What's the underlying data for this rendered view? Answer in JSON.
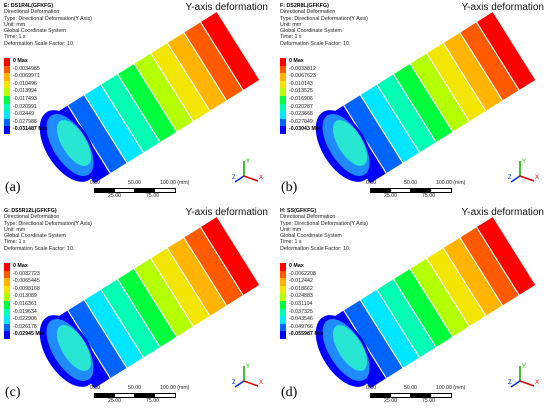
{
  "figure": {
    "panels": [
      {
        "label": "(a)",
        "title": "E: DS1R4L(GFKFG)",
        "lines": [
          "Directional Deformation",
          "Type: Directional Deformation(Y Axis)",
          "Unit: mm",
          "Global Coordinate System",
          "Time: 1 s",
          "Deformation Scale Factor: 10."
        ],
        "axis_label": "Y-axis deformation",
        "legend": [
          "0 Max",
          "-0.0034985",
          "-0.0069971",
          "-0.010496",
          "-0.013994",
          "-0.017493",
          "-0.020991",
          "-0.02449",
          "-0.027988",
          "-0.031487 Min"
        ]
      },
      {
        "label": "(b)",
        "title": "F: DS2R8L(GFKFG)",
        "lines": [
          "Directional Deformation",
          "Type: Directional Deformation(Y Axis)",
          "Unit: mm",
          "Global Coordinate System",
          "Time: 1 s",
          "Deformation Scale Factor: 10."
        ],
        "axis_label": "Y-axis deformation",
        "legend": [
          "0 Max",
          "-0.0033812",
          "-0.0067623",
          "-0.010143",
          "-0.013525",
          "-0.016906",
          "-0.020287",
          "-0.023668",
          "-0.027049",
          "-0.03043 Min"
        ]
      },
      {
        "label": "(c)",
        "title": "G: DS5R12L(GFKFG)",
        "lines": [
          "Directional Deformation",
          "Type: Directional Deformation(Y Axis)",
          "Unit: mm",
          "Global Coordinate System",
          "Time: 1 s",
          "Deformation Scale Factor: 10."
        ],
        "axis_label": "Y-axis deformation",
        "legend": [
          "0 Max",
          "-0.0032723",
          "-0.0065445",
          "-0.0098168",
          "-0.013089",
          "-0.016361",
          "-0.019634",
          "-0.022906",
          "-0.026178",
          "-0.02945 Min"
        ]
      },
      {
        "label": "(d)",
        "title": "H: SS(GFKFG)",
        "lines": [
          "Directional Deformation",
          "Type: Directional Deformation(Y Axis)",
          "Unit: mm",
          "Global Coordinate System",
          "Time: 1 s",
          "Deformation Scale Factor: 10."
        ],
        "axis_label": "Y-axis deformation",
        "legend": [
          "0 Max",
          "-0.0062208",
          "-0.012442",
          "-0.018662",
          "-0.024883",
          "-0.031104",
          "-0.037325",
          "-0.043546",
          "-0.049766",
          "-0.055987 Min"
        ]
      }
    ],
    "scale_bar": {
      "top_ticks": [
        "0.00",
        "50.00",
        "100.00 (mm)"
      ],
      "bottom_ticks": [
        "25.00",
        "75.00"
      ]
    },
    "colormap": [
      "#ff0000",
      "#ff5a00",
      "#ffb400",
      "#f2e600",
      "#b4ff00",
      "#00ff3c",
      "#00ffb4",
      "#00e6ff",
      "#0064ff",
      "#0000ff"
    ],
    "triad_axes": [
      "Y",
      "Z",
      "X"
    ]
  }
}
